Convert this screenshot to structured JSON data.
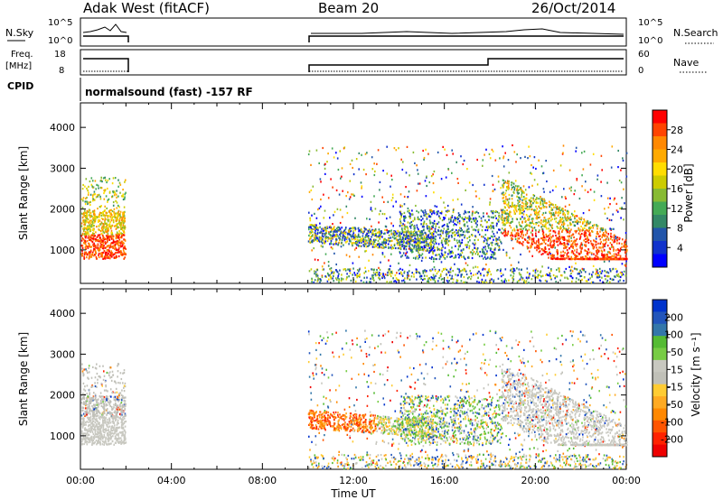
{
  "header": {
    "station": "Adak West (fitACF)",
    "beam": "Beam 20",
    "date": "26/Oct/2014"
  },
  "aux": {
    "nsky_label": "N.Sky",
    "nsky_ticks": [
      "10^5",
      "10^0"
    ],
    "nsearch_label": "N.Search",
    "nsearch_ticks": [
      "10^5",
      "10^0"
    ],
    "freq_label": "Freq.",
    "freq_unit": "[MHz]",
    "freq_ticks": [
      "18",
      "8"
    ],
    "nave_label": "Nave",
    "nave_ticks": [
      "60",
      "0"
    ],
    "cpid_label": "CPID",
    "cpid_text": "normalsound (fast) -157 RF"
  },
  "chart_data": [
    {
      "type": "heatmap",
      "name": "power",
      "xlabel": "",
      "ylabel": "Slant Range [km]",
      "x_ticks": [
        "00:00",
        "04:00",
        "08:00",
        "12:00",
        "16:00",
        "20:00",
        "00:00"
      ],
      "xlim_hours": [
        0,
        24
      ],
      "y_ticks": [
        1000,
        2000,
        3000,
        4000
      ],
      "ylim": [
        180,
        4600
      ],
      "colorbar_label": "Power [dB]",
      "colorbar_ticks": [
        28,
        24,
        20,
        16,
        12,
        8,
        4
      ],
      "colorbar_colors": [
        "#ff0000",
        "#ff4400",
        "#ff8800",
        "#ffaa00",
        "#ffdd00",
        "#cccc00",
        "#88bb33",
        "#44aa55",
        "#338866",
        "#2255aa",
        "#1133cc",
        "#0000ff"
      ]
    },
    {
      "type": "heatmap",
      "name": "velocity",
      "xlabel": "Time UT",
      "ylabel": "Slant Range [km]",
      "x_ticks": [
        "00:00",
        "04:00",
        "08:00",
        "12:00",
        "16:00",
        "20:00",
        "00:00"
      ],
      "xlim_hours": [
        0,
        24
      ],
      "y_ticks": [
        1000,
        2000,
        3000,
        4000
      ],
      "ylim": [
        180,
        4600
      ],
      "colorbar_label": "Velocity [m s⁻¹]",
      "colorbar_ticks": [
        "200",
        "100",
        "50",
        "15",
        "-15",
        "-50",
        "-100",
        "-200"
      ],
      "colorbar_colors": [
        "#0033cc",
        "#2255bb",
        "#3377aa",
        "#55bb33",
        "#77cc44",
        "#c8c8c0",
        "#c0c0b8",
        "#ffcc33",
        "#ffaa22",
        "#ff8800",
        "#ff5500",
        "#ff2200",
        "#ee0000"
      ]
    }
  ]
}
